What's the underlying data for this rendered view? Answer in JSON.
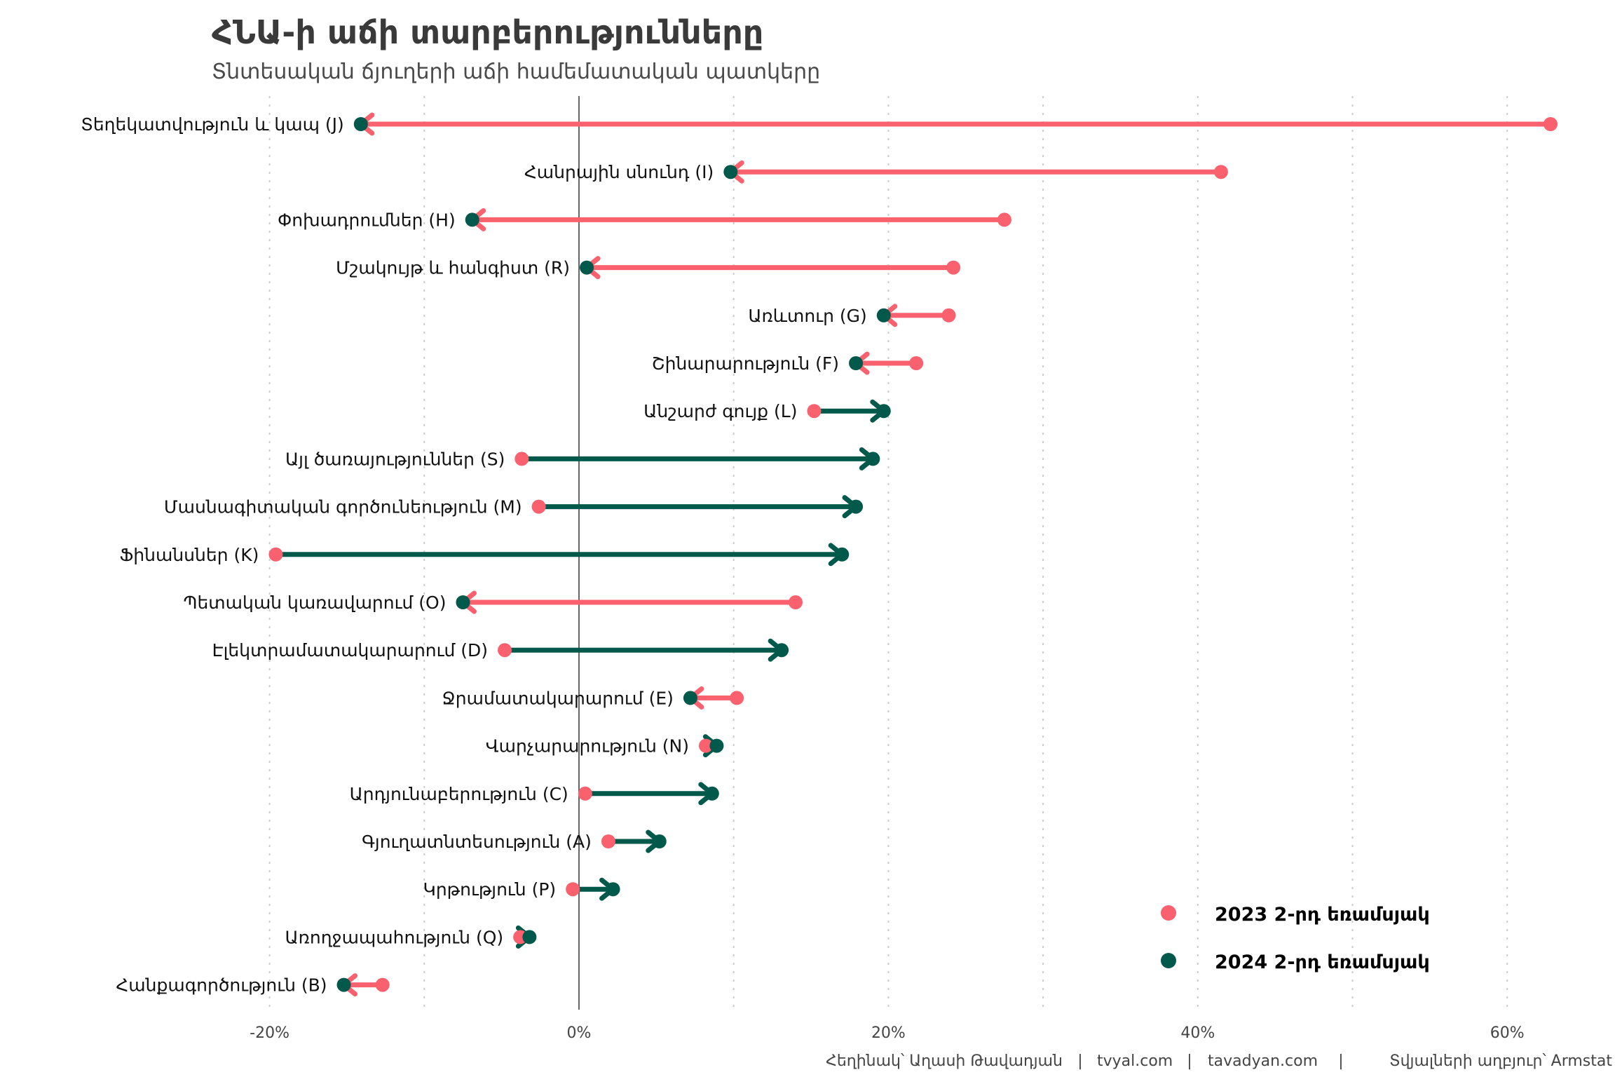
{
  "colors": {
    "y2023": "#F8616D",
    "y2024": "#00594A",
    "zero_line": "#666666",
    "grid": "#cccccc"
  },
  "chart_data": {
    "type": "dumbbell",
    "title": "ՀՆԱ-ի աճի տարբերությունները",
    "subtitle": "Տնտեսական ճյուղերի աճի համեմատական պատկերը",
    "xlabel": "",
    "ylabel": "",
    "xlim": [
      -20,
      62
    ],
    "x_ticks": [
      -20,
      0,
      20,
      40,
      60
    ],
    "x_tick_labels": [
      "-20%",
      "0%",
      "20%",
      "40%",
      "60%"
    ],
    "grid": "vertical dotted",
    "legend_position": "bottom-right",
    "series": [
      {
        "name": "2023 2-րդ եռամսյակ",
        "color_key": "y2023"
      },
      {
        "name": "2024 2-րդ եռամսյակ",
        "color_key": "y2024"
      }
    ],
    "categories": [
      "Տեղեկատվություն և կապ (J)",
      "Հանրային սնունդ (I)",
      "Փոխադրումներ (H)",
      "Մշակույթ և հանգիստ (R)",
      "Առևտուր (G)",
      "Շինարարություն (F)",
      "Անշարժ գույք (L)",
      "Այլ ծառայություններ (S)",
      "Մասնագիտական գործունեություն (M)",
      "Ֆինանսներ (K)",
      "Պետական կառավարում (O)",
      "Էլեկտրամատակարարում (D)",
      "Ջրամատակարարում (E)",
      "Վարչարարություն (N)",
      "Արդյունաբերություն (C)",
      "Գյուղատնտեսություն (A)",
      "Կրթություն (P)",
      "Առողջապահություն (Q)",
      "Հանքագործություն (B)"
    ],
    "values_2023": [
      62.8,
      41.5,
      27.5,
      24.2,
      23.9,
      21.8,
      15.2,
      -3.7,
      -2.6,
      -19.6,
      14.0,
      -4.8,
      10.2,
      8.2,
      0.4,
      1.9,
      -0.4,
      -3.8,
      -12.7
    ],
    "values_2024": [
      -14.1,
      9.8,
      -6.9,
      0.5,
      19.7,
      17.9,
      19.7,
      19.0,
      17.9,
      17.0,
      -7.5,
      13.1,
      7.2,
      8.9,
      8.6,
      5.2,
      2.2,
      -3.2,
      -15.2
    ]
  },
  "caption": {
    "author": "Հեղինակ՝ Աղասի Թավադյան",
    "site1": "tvyal.com",
    "site2": "tavadyan.com",
    "source": "Տվյալների աղբյուր՝ Armstat",
    "separator": "|"
  }
}
